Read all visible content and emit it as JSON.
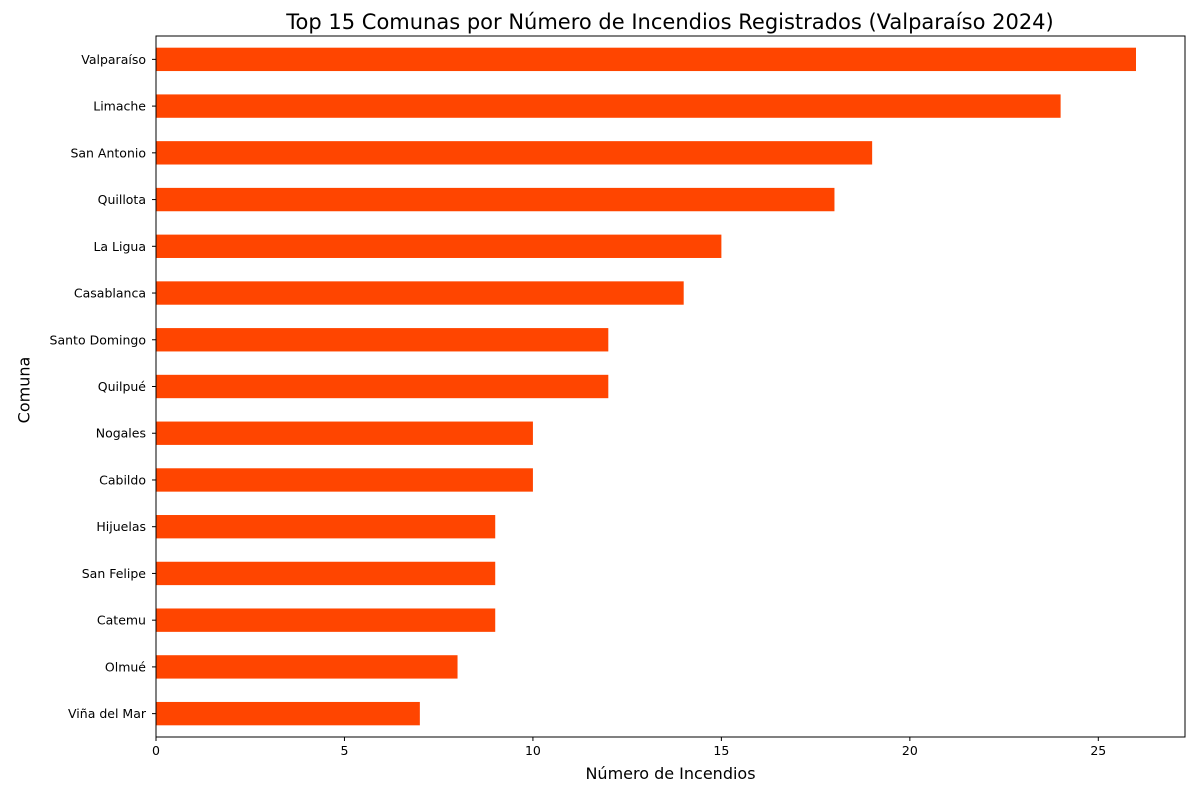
{
  "chart_data": {
    "type": "bar",
    "orientation": "horizontal",
    "title": "Top 15 Comunas por Número de Incendios Registrados (Valparaíso 2024)",
    "xlabel": "Número de Incendios",
    "ylabel": "Comuna",
    "categories": [
      "Valparaíso",
      "Limache",
      "San Antonio",
      "Quillota",
      "La Ligua",
      "Casablanca",
      "Santo Domingo",
      "Quilpué",
      "Nogales",
      "Cabildo",
      "Hijuelas",
      "San Felipe",
      "Catemu",
      "Olmué",
      "Viña del Mar"
    ],
    "values": [
      26,
      24,
      19,
      18,
      15,
      14,
      12,
      12,
      10,
      10,
      9,
      9,
      9,
      8,
      7
    ],
    "xlim": [
      0,
      27.3
    ],
    "xticks": [
      0,
      5,
      10,
      15,
      20,
      25
    ],
    "bar_color": "#ff4500",
    "grid": false,
    "legend": false
  }
}
